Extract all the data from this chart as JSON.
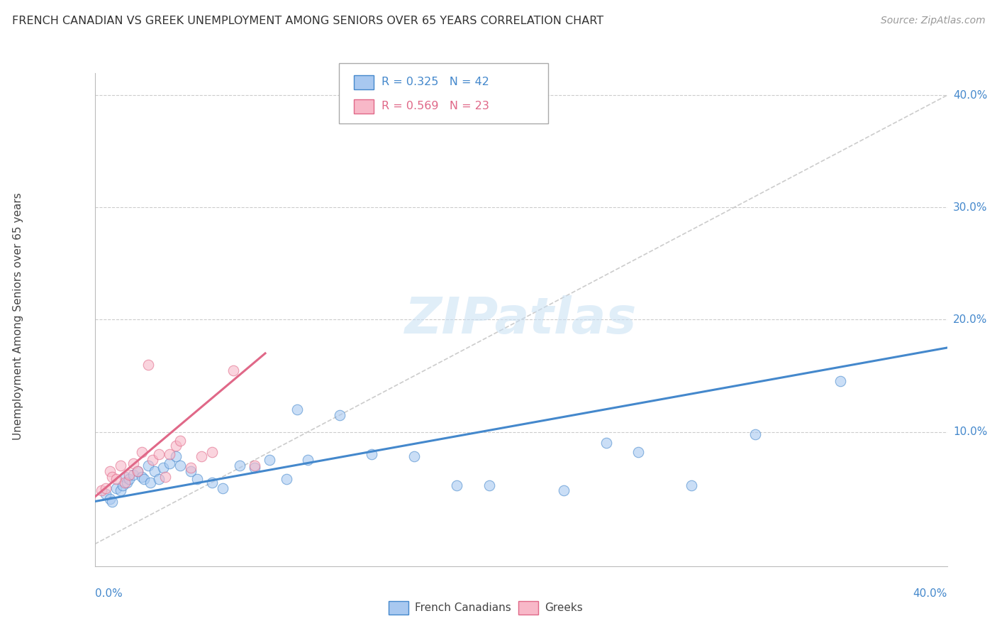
{
  "title": "FRENCH CANADIAN VS GREEK UNEMPLOYMENT AMONG SENIORS OVER 65 YEARS CORRELATION CHART",
  "source": "Source: ZipAtlas.com",
  "ylabel": "Unemployment Among Seniors over 65 years",
  "xlim": [
    0.0,
    0.4
  ],
  "ylim": [
    -0.02,
    0.42
  ],
  "watermark": "ZIPatlas",
  "legend_blue_R": "R = 0.325",
  "legend_blue_N": "N = 42",
  "legend_pink_R": "R = 0.569",
  "legend_pink_N": "N = 23",
  "blue_scatter_x": [
    0.005,
    0.007,
    0.008,
    0.01,
    0.012,
    0.013,
    0.014,
    0.015,
    0.016,
    0.018,
    0.02,
    0.022,
    0.023,
    0.025,
    0.026,
    0.028,
    0.03,
    0.032,
    0.035,
    0.038,
    0.04,
    0.045,
    0.048,
    0.055,
    0.06,
    0.068,
    0.075,
    0.082,
    0.09,
    0.095,
    0.1,
    0.115,
    0.13,
    0.15,
    0.17,
    0.185,
    0.22,
    0.24,
    0.255,
    0.28,
    0.31,
    0.35
  ],
  "blue_scatter_y": [
    0.045,
    0.04,
    0.038,
    0.05,
    0.048,
    0.052,
    0.06,
    0.055,
    0.058,
    0.062,
    0.065,
    0.06,
    0.058,
    0.07,
    0.055,
    0.065,
    0.058,
    0.068,
    0.072,
    0.078,
    0.07,
    0.065,
    0.058,
    0.055,
    0.05,
    0.07,
    0.068,
    0.075,
    0.058,
    0.12,
    0.075,
    0.115,
    0.08,
    0.078,
    0.052,
    0.052,
    0.048,
    0.09,
    0.082,
    0.052,
    0.098,
    0.145
  ],
  "pink_scatter_x": [
    0.003,
    0.005,
    0.007,
    0.008,
    0.01,
    0.012,
    0.014,
    0.016,
    0.018,
    0.02,
    0.022,
    0.025,
    0.027,
    0.03,
    0.033,
    0.035,
    0.038,
    0.04,
    0.045,
    0.05,
    0.055,
    0.065,
    0.075
  ],
  "pink_scatter_y": [
    0.048,
    0.05,
    0.065,
    0.06,
    0.058,
    0.07,
    0.055,
    0.062,
    0.072,
    0.065,
    0.082,
    0.16,
    0.075,
    0.08,
    0.06,
    0.08,
    0.088,
    0.092,
    0.068,
    0.078,
    0.082,
    0.155,
    0.07
  ],
  "blue_line_x": [
    0.0,
    0.4
  ],
  "blue_line_y": [
    0.038,
    0.175
  ],
  "pink_line_x": [
    0.0,
    0.08
  ],
  "pink_line_y": [
    0.042,
    0.17
  ],
  "trend_line_x": [
    0.0,
    0.4
  ],
  "trend_line_y": [
    0.0,
    0.4
  ],
  "blue_color": "#a8c8f0",
  "pink_color": "#f8b8c8",
  "blue_line_color": "#4488cc",
  "pink_line_color": "#e06888",
  "trend_color": "#cccccc",
  "background_color": "#ffffff",
  "grid_color": "#cccccc",
  "ytick_positions": [
    0.1,
    0.2,
    0.3,
    0.4
  ],
  "ytick_labels": [
    "10.0%",
    "20.0%",
    "30.0%",
    "40.0%"
  ],
  "xtick_labels_left": "0.0%",
  "xtick_labels_right": "40.0%"
}
